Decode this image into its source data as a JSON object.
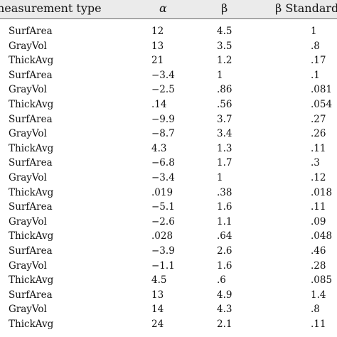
{
  "table": {
    "headers": {
      "type": "neasurement type",
      "alpha": "α",
      "beta": "β",
      "beta_std": "β Standard"
    },
    "rows": [
      {
        "type": "SurfArea",
        "alpha": "12",
        "beta": "4.5",
        "beta_std": "1"
      },
      {
        "type": "GrayVol",
        "alpha": "13",
        "beta": "3.5",
        "beta_std": ".8"
      },
      {
        "type": "ThickAvg",
        "alpha": "21",
        "beta": "1.2",
        "beta_std": ".17"
      },
      {
        "type": "SurfArea",
        "alpha": "−3.4",
        "beta": "1",
        "beta_std": ".1"
      },
      {
        "type": "GrayVol",
        "alpha": "−2.5",
        "beta": ".86",
        "beta_std": ".081"
      },
      {
        "type": "ThickAvg",
        "alpha": ".14",
        "beta": ".56",
        "beta_std": ".054"
      },
      {
        "type": "SurfArea",
        "alpha": "−9.9",
        "beta": "3.7",
        "beta_std": ".27"
      },
      {
        "type": "GrayVol",
        "alpha": "−8.7",
        "beta": "3.4",
        "beta_std": ".26"
      },
      {
        "type": "ThickAvg",
        "alpha": "4.3",
        "beta": "1.3",
        "beta_std": ".11"
      },
      {
        "type": "SurfArea",
        "alpha": "−6.8",
        "beta": "1.7",
        "beta_std": ".3"
      },
      {
        "type": "GrayVol",
        "alpha": "−3.4",
        "beta": "1",
        "beta_std": ".12"
      },
      {
        "type": "ThickAvg",
        "alpha": ".019",
        "beta": ".38",
        "beta_std": ".018"
      },
      {
        "type": "SurfArea",
        "alpha": "−5.1",
        "beta": "1.6",
        "beta_std": ".11"
      },
      {
        "type": "GrayVol",
        "alpha": "−2.6",
        "beta": "1.1",
        "beta_std": ".09"
      },
      {
        "type": "ThickAvg",
        "alpha": ".028",
        "beta": ".64",
        "beta_std": ".048"
      },
      {
        "type": "SurfArea",
        "alpha": "−3.9",
        "beta": "2.6",
        "beta_std": ".46"
      },
      {
        "type": "GrayVol",
        "alpha": "−1.1",
        "beta": "1.6",
        "beta_std": ".28"
      },
      {
        "type": "ThickAvg",
        "alpha": "4.5",
        "beta": ".6",
        "beta_std": ".085"
      },
      {
        "type": "SurfArea",
        "alpha": "13",
        "beta": "4.9",
        "beta_std": "1.4"
      },
      {
        "type": "GrayVol",
        "alpha": "14",
        "beta": "4.3",
        "beta_std": ".8"
      },
      {
        "type": "ThickAvg",
        "alpha": "24",
        "beta": "2.1",
        "beta_std": ".11"
      }
    ]
  },
  "colors": {
    "header_background": "#ebebeb",
    "text": "#111111",
    "rule": "#6a6a6a"
  }
}
